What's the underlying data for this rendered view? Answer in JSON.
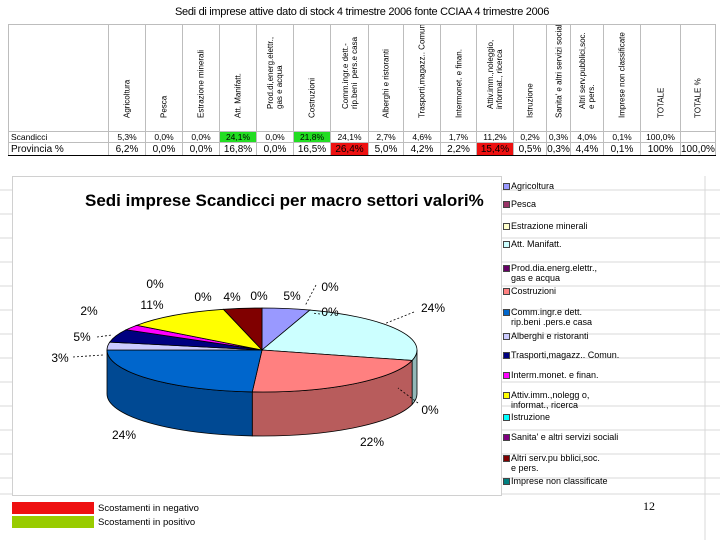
{
  "table": {
    "title": "Sedi di imprese attive dato di stock 4 trimestre 2006 fonte CCIAA  4 trimestre 2006",
    "columns": [
      "Agricoltura",
      "Pesca",
      "Estrazione minerali",
      "Att. Manifatt.",
      "Prod.di,energ.elettr.,\ngas e acqua",
      "Costruzioni",
      "Comm.ingr.e dett.-\nrip.beni  pers.e casa",
      "Alberghi e ristoranti",
      "Trasporti,magazz.. Comun.",
      "Intermonet. e finan.",
      "Attiv.imm.,noleggio,\ninformat., ricerca",
      "Istruzione",
      "Sanita' e altri servizi sociali",
      "Altri serv.pubblici,soc.\ne pers.",
      "Imprese non classificate",
      "TOTALE",
      "TOTALE %"
    ],
    "rows": [
      {
        "label": "Scandicci",
        "values": [
          "5,3%",
          "0,0%",
          "0,0%",
          "24,1%",
          "0,0%",
          "21,8%",
          "24,1%",
          "2,7%",
          "4,6%",
          "1,7%",
          "11,2%",
          "0,2%",
          "0,3%",
          "4,0%",
          "0,1%",
          "100,0%",
          ""
        ]
      },
      {
        "label": "Provincia %",
        "values": [
          "6,2%",
          "0,0%",
          "0,0%",
          "16,8%",
          "0,0%",
          "16,5%",
          "26,4%",
          "5,0%",
          "4,2%",
          "2,2%",
          "15,4%",
          "0,5%",
          "0,3%",
          "4,4%",
          "0,1%",
          "100%",
          "100,0%"
        ]
      }
    ],
    "colors": {
      "positive": "#22dd22",
      "negative": "#ee1111",
      "positive_key": "#99cc00"
    }
  },
  "chart_data": {
    "type": "pie",
    "title": "Sedi imprese Scandicci per macro settori valori%",
    "categories": [
      "Agricoltura",
      "Pesca",
      "Estrazione minerali",
      "Att. Manifatt.",
      "Prod.dia.energ.elettr.,\ngas e acqua",
      "Costruzioni",
      "Comm.ingr.e dett.\nrip.beni .pers.e casa",
      "Alberghi e ristoranti",
      "Trasporti,magazz.. Comun.",
      "Interm.monet. e finan.",
      "Attiv.imm.,nolegg o,\ninformat., ricerca",
      "Istruzione",
      "Sanita' e altri servizi sociali",
      "Altri serv.pu bblici,soc.\ne pers.",
      "Imprese non classificate"
    ],
    "values": [
      5,
      0,
      0,
      24,
      0,
      22,
      24,
      3,
      5,
      2,
      11,
      0,
      0,
      4,
      0
    ],
    "data_labels": [
      "5%",
      "0%",
      "0%",
      "24%",
      "0%",
      "22%",
      "24%",
      "3%",
      "5%",
      "2%",
      "11%",
      "0%",
      "0%",
      "4%",
      "0%"
    ],
    "colors": [
      "#9999ff",
      "#993366",
      "#ffffcc",
      "#ccffff",
      "#660066",
      "#ff8080",
      "#0066cc",
      "#ccccff",
      "#000080",
      "#ff00ff",
      "#ffff00",
      "#00ffff",
      "#800080",
      "#800000",
      "#008080"
    ],
    "legend_position": "right"
  },
  "key": {
    "negative": "Scostamenti in negativo",
    "positive": "Scostamenti in positivo"
  },
  "page_number": "12"
}
